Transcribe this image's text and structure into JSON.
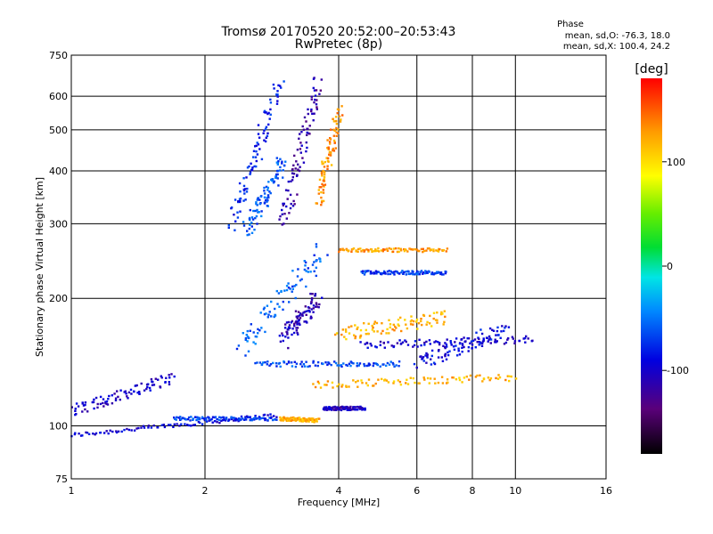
{
  "chart_data": {
    "type": "scatter",
    "title": "Tromsø 20170520 20:52:00–20:53:43",
    "subtitle": "RwPretec (8p)",
    "xlabel": "Frequency [MHz]",
    "ylabel": "Stationary phase Virtual Height [km]",
    "x_scale": "log",
    "y_scale": "log",
    "xlim": [
      1,
      16
    ],
    "ylim": [
      75,
      750
    ],
    "x_ticks": [
      1,
      2,
      4,
      6,
      8,
      10,
      16
    ],
    "x_tick_labels": [
      "1",
      "2",
      "4",
      "6",
      "8",
      "10",
      "16"
    ],
    "y_ticks": [
      75,
      100,
      200,
      300,
      400,
      500,
      600,
      750
    ],
    "y_tick_labels": [
      "75",
      "100",
      "200",
      "300",
      "400",
      "500",
      "600",
      "750"
    ],
    "grid": true,
    "phase_legend": {
      "title": "Phase",
      "line_o": "mean, sd,O: -76.3, 18.0",
      "line_x": "mean, sd,X: 100.4, 24.2"
    },
    "colorbar": {
      "label": "[deg]",
      "range": [
        -180,
        180
      ],
      "ticks": [
        100,
        0,
        -100
      ],
      "tick_labels": [
        "100",
        "0",
        "-100"
      ]
    },
    "traces": [
      {
        "x": [
          1.0,
          2.9
        ],
        "y": [
          95,
          106
        ],
        "phase": -95,
        "spread": 0.012
      },
      {
        "x": [
          1.0,
          1.7
        ],
        "y": [
          108,
          130
        ],
        "phase": -100,
        "spread": 0.03
      },
      {
        "x": [
          1.7,
          2.9
        ],
        "y": [
          104,
          104
        ],
        "phase": -70,
        "spread": 0.01
      },
      {
        "x": [
          2.95,
          3.6
        ],
        "y": [
          104,
          103
        ],
        "phase": 120,
        "spread": 0.01
      },
      {
        "x": [
          3.7,
          4.6
        ],
        "y": [
          110,
          110
        ],
        "phase": -105,
        "spread": 0.01
      },
      {
        "x": [
          2.3,
          2.95
        ],
        "y": [
          300,
          640
        ],
        "phase": -80,
        "spread": 0.05
      },
      {
        "x": [
          2.5,
          3.0
        ],
        "y": [
          290,
          420
        ],
        "phase": -60,
        "spread": 0.05
      },
      {
        "x": [
          3.0,
          3.6
        ],
        "y": [
          300,
          650
        ],
        "phase": -115,
        "spread": 0.05
      },
      {
        "x": [
          3.6,
          4.0
        ],
        "y": [
          340,
          550
        ],
        "phase": 130,
        "spread": 0.04
      },
      {
        "x": [
          2.4,
          3.7
        ],
        "y": [
          150,
          260
        ],
        "phase": -60,
        "spread": 0.06
      },
      {
        "x": [
          3.0,
          3.6
        ],
        "y": [
          160,
          200
        ],
        "phase": -110,
        "spread": 0.05
      },
      {
        "x": [
          2.6,
          5.5
        ],
        "y": [
          140,
          140
        ],
        "phase": -65,
        "spread": 0.015
      },
      {
        "x": [
          3.5,
          10.0
        ],
        "y": [
          125,
          130
        ],
        "phase": 120,
        "spread": 0.02
      },
      {
        "x": [
          4.5,
          11.0
        ],
        "y": [
          155,
          160
        ],
        "phase": -100,
        "spread": 0.02
      },
      {
        "x": [
          4.0,
          7.0
        ],
        "y": [
          260,
          260
        ],
        "phase": 130,
        "spread": 0.01
      },
      {
        "x": [
          4.5,
          7.0
        ],
        "y": [
          230,
          230
        ],
        "phase": -70,
        "spread": 0.01
      },
      {
        "x": [
          4.0,
          7.0
        ],
        "y": [
          165,
          180
        ],
        "phase": 120,
        "spread": 0.04
      },
      {
        "x": [
          6.0,
          9.5
        ],
        "y": [
          140,
          170
        ],
        "phase": -90,
        "spread": 0.04
      }
    ]
  }
}
